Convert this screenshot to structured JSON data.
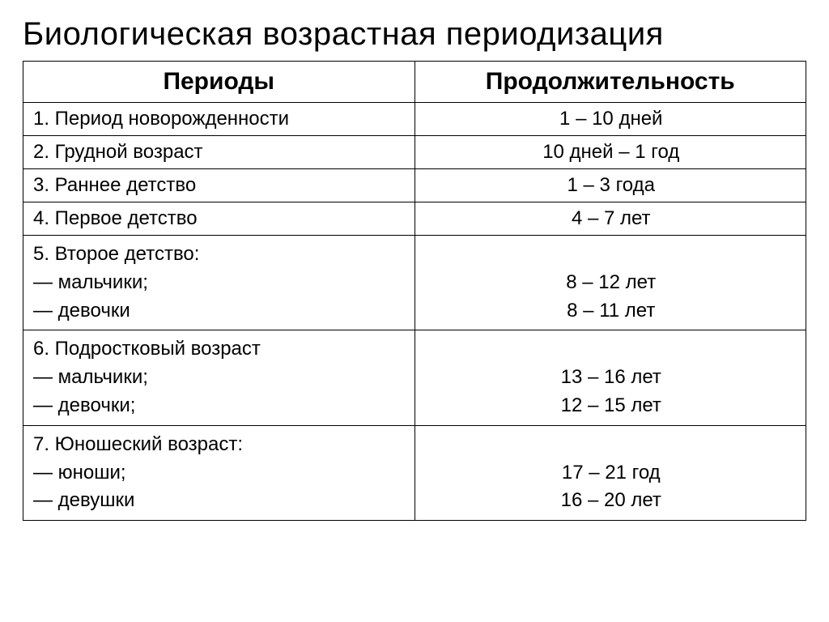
{
  "title": "Биологическая возрастная периодизация",
  "table": {
    "headers": {
      "periods": "Периоды",
      "duration": "Продолжительность"
    },
    "rows": [
      {
        "period": "1. Период новорожденности",
        "duration": "1 – 10 дней"
      },
      {
        "period": "2. Грудной возраст",
        "duration": "10 дней – 1 год"
      },
      {
        "period": "3. Раннее детство",
        "duration": "1 – 3 года"
      },
      {
        "period": "4. Первое детство",
        "duration": "4 – 7 лет"
      }
    ],
    "multiRows": [
      {
        "heading": "5. Второе детство:",
        "subPeriods": [
          "— мальчики;",
          "— девочки"
        ],
        "subDurations": [
          "8 – 12 лет",
          "8 – 11 лет"
        ]
      },
      {
        "heading": "6. Подростковый возраст",
        "subPeriods": [
          "— мальчики;",
          "— девочки;"
        ],
        "subDurations": [
          "13 – 16 лет",
          "12 – 15 лет"
        ]
      },
      {
        "heading": "7. Юношеский возраст:",
        "subPeriods": [
          "— юноши;",
          "— девушки"
        ],
        "subDurations": [
          "17 – 21 год",
          "16 – 20 лет"
        ]
      }
    ]
  },
  "styling": {
    "background_color": "#ffffff",
    "text_color": "#000000",
    "border_color": "#000000",
    "title_fontsize": 40,
    "header_fontsize": 30,
    "cell_fontsize": 24,
    "font_family": "Arial"
  }
}
